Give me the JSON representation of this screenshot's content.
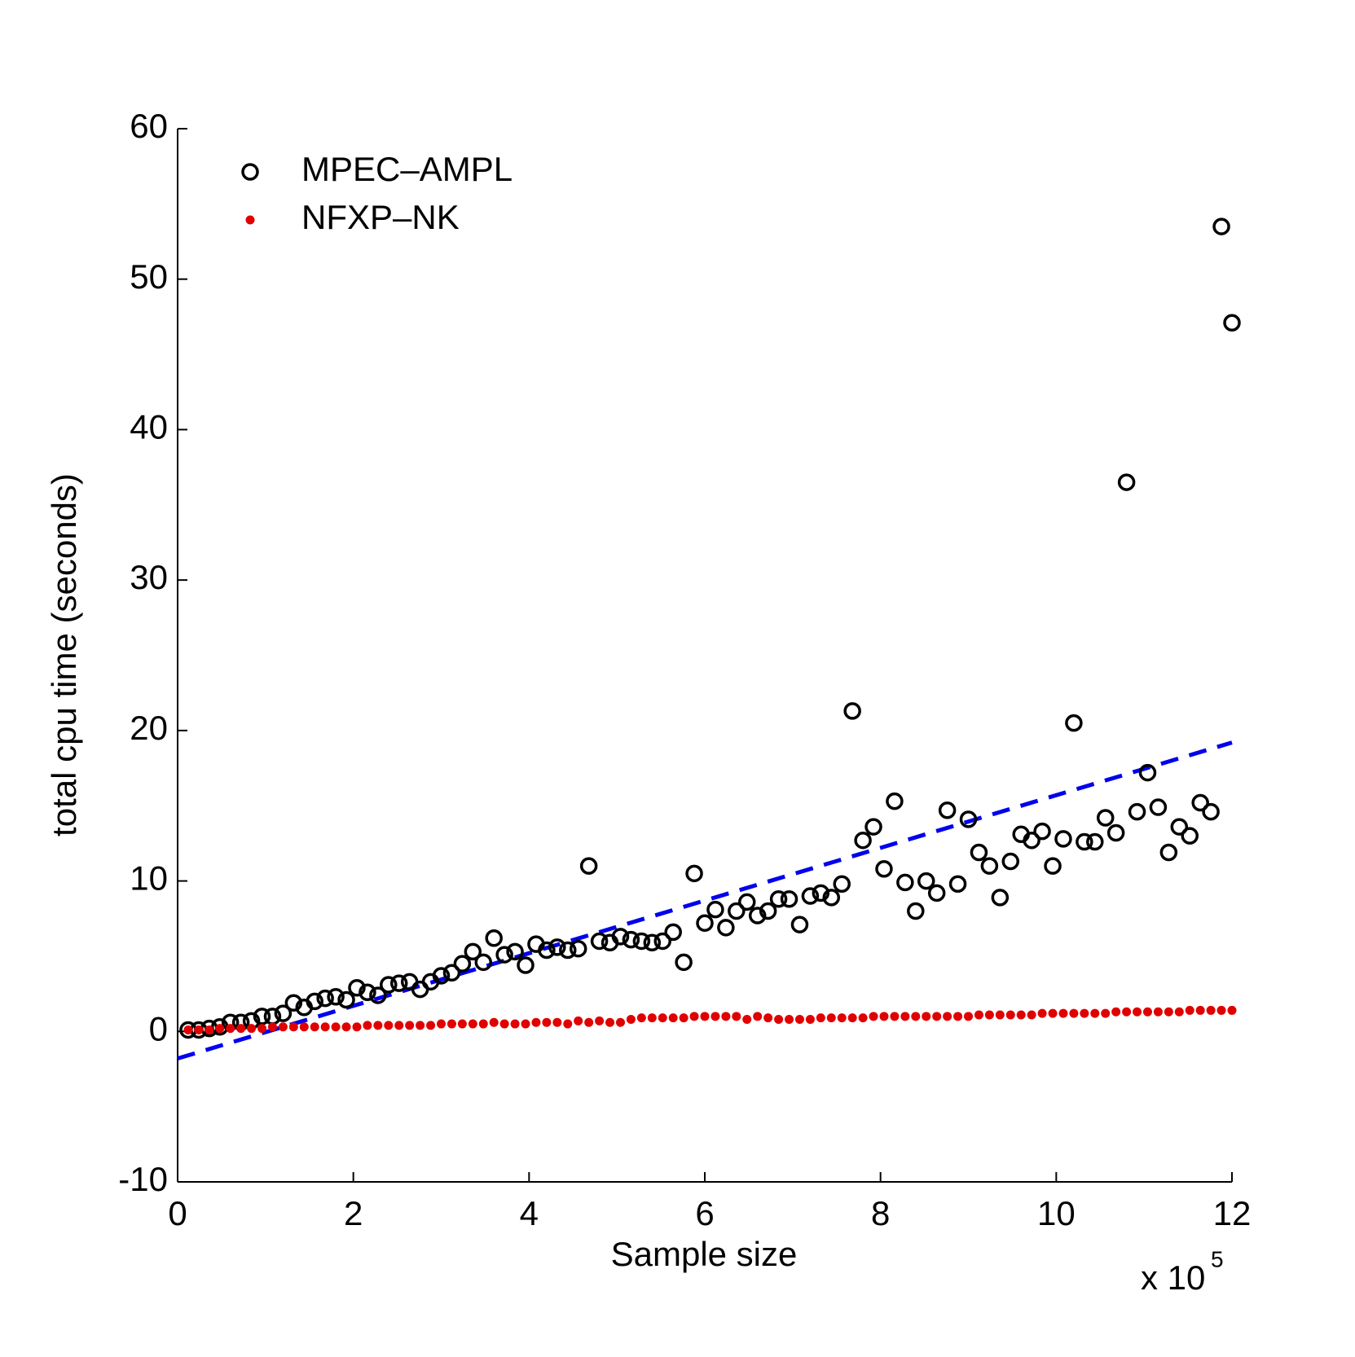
{
  "chart_data": {
    "type": "scatter",
    "x_label": "Sample size",
    "y_label": "total cpu time (seconds)",
    "x_multiplier": {
      "base": "x 10",
      "exponent": "5"
    },
    "xlim": [
      0,
      12
    ],
    "xticks": [
      0,
      2,
      4,
      6,
      8,
      10,
      12
    ],
    "ylim": [
      -10,
      60
    ],
    "yticks": [
      -10,
      0,
      10,
      20,
      30,
      40,
      50,
      60
    ],
    "legend": "upper-left",
    "x": [
      0.12,
      0.24,
      0.36,
      0.48,
      0.6,
      0.72,
      0.84,
      0.96,
      1.08,
      1.2,
      1.32,
      1.44,
      1.56,
      1.68,
      1.8,
      1.92,
      2.04,
      2.16,
      2.28,
      2.4,
      2.52,
      2.64,
      2.76,
      2.88,
      3,
      3.12,
      3.24,
      3.36,
      3.48,
      3.6,
      3.72,
      3.84,
      3.96,
      4.08,
      4.2,
      4.32,
      4.44,
      4.56,
      4.68,
      4.8,
      4.92,
      5.04,
      5.16,
      5.28,
      5.4,
      5.52,
      5.64,
      5.76,
      5.88,
      6,
      6.12,
      6.24,
      6.36,
      6.48,
      6.6,
      6.72,
      6.84,
      6.96,
      7.08,
      7.2,
      7.32,
      7.44,
      7.56,
      7.68,
      7.8,
      7.92,
      8.04,
      8.16,
      8.28,
      8.4,
      8.52,
      8.64,
      8.76,
      8.88,
      9,
      9.12,
      9.24,
      9.36,
      9.48,
      9.6,
      9.72,
      9.84,
      9.96,
      10.08,
      10.2,
      10.32,
      10.44,
      10.56,
      10.68,
      10.8,
      10.92,
      11.04,
      11.16,
      11.28,
      11.4,
      11.52,
      11.64,
      11.76,
      11.88,
      12
    ],
    "series": [
      {
        "name": "MPEC–AMPL",
        "color": "#000000",
        "marker": "circle",
        "values": [
          0.1,
          0.1,
          0.2,
          0.3,
          0.6,
          0.6,
          0.7,
          1.0,
          1.0,
          1.2,
          1.9,
          1.6,
          2.0,
          2.2,
          2.3,
          2.1,
          2.9,
          2.6,
          2.4,
          3.1,
          3.2,
          3.3,
          2.8,
          3.3,
          3.7,
          3.9,
          4.5,
          5.3,
          4.6,
          6.2,
          5.1,
          5.3,
          4.4,
          5.8,
          5.4,
          5.6,
          5.4,
          5.5,
          11.0,
          6.0,
          5.9,
          6.3,
          6.1,
          6.0,
          5.9,
          6.0,
          6.6,
          4.6,
          10.5,
          7.2,
          8.1,
          6.9,
          8.0,
          8.6,
          7.7,
          8.0,
          8.8,
          8.8,
          7.1,
          9.0,
          9.2,
          8.9,
          9.8,
          21.3,
          12.7,
          13.6,
          10.8,
          15.3,
          9.9,
          8.0,
          10.0,
          9.2,
          14.7,
          9.8,
          14.1,
          11.9,
          11.0,
          8.9,
          11.3,
          13.1,
          12.7,
          13.3,
          11.0,
          12.8,
          20.5,
          12.6,
          12.6,
          14.2,
          13.2,
          36.5,
          14.6,
          17.2,
          14.9,
          11.9,
          13.6,
          13.0,
          15.2,
          14.6,
          53.5,
          47.1
        ]
      },
      {
        "name": "NFXP–NK",
        "color": "#e00000",
        "marker": "dot",
        "values": [
          0.1,
          0.1,
          0.1,
          0.2,
          0.2,
          0.2,
          0.2,
          0.2,
          0.3,
          0.3,
          0.3,
          0.3,
          0.3,
          0.3,
          0.3,
          0.3,
          0.3,
          0.4,
          0.4,
          0.4,
          0.4,
          0.4,
          0.4,
          0.4,
          0.5,
          0.5,
          0.5,
          0.5,
          0.5,
          0.6,
          0.5,
          0.5,
          0.5,
          0.6,
          0.6,
          0.6,
          0.5,
          0.7,
          0.6,
          0.7,
          0.6,
          0.6,
          0.8,
          0.9,
          0.9,
          0.9,
          0.9,
          0.9,
          1.0,
          1.0,
          1.0,
          1.0,
          1.0,
          0.8,
          1.0,
          0.9,
          0.8,
          0.8,
          0.8,
          0.8,
          0.9,
          0.9,
          0.9,
          0.9,
          0.9,
          1.0,
          1.0,
          1.0,
          1.0,
          1.0,
          1.0,
          1.0,
          1.0,
          1.0,
          1.0,
          1.1,
          1.1,
          1.1,
          1.1,
          1.1,
          1.1,
          1.2,
          1.2,
          1.2,
          1.2,
          1.2,
          1.2,
          1.2,
          1.3,
          1.3,
          1.3,
          1.3,
          1.3,
          1.3,
          1.3,
          1.4,
          1.4,
          1.4,
          1.4,
          1.4
        ]
      }
    ],
    "fit_line": {
      "x": [
        0,
        12
      ],
      "values": [
        -1.8,
        19.2
      ],
      "color": "#0000ee"
    }
  }
}
